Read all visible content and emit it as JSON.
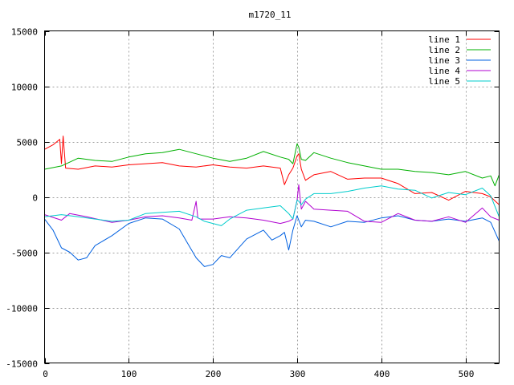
{
  "chart_data": {
    "type": "line",
    "title": "m1720_11",
    "xlabel": "",
    "ylabel": "",
    "xlim": [
      0,
      540
    ],
    "ylim": [
      -15000,
      15000
    ],
    "xticks": [
      0,
      100,
      200,
      300,
      400,
      500
    ],
    "yticks": [
      -15000,
      -10000,
      -5000,
      0,
      5000,
      10000,
      15000
    ],
    "grid": true,
    "legend_position": "top-right",
    "series": [
      {
        "name": "line 1",
        "color": "#ff0000",
        "x": [
          0,
          10,
          18,
          20,
          22,
          25,
          40,
          60,
          80,
          100,
          120,
          140,
          160,
          180,
          200,
          220,
          240,
          260,
          280,
          285,
          290,
          295,
          300,
          302,
          305,
          310,
          320,
          340,
          360,
          380,
          400,
          420,
          440,
          460,
          480,
          500,
          520,
          530,
          540
        ],
        "y": [
          4300,
          4700,
          5200,
          3000,
          5500,
          2600,
          2500,
          2800,
          2700,
          2900,
          3000,
          3100,
          2800,
          2700,
          2900,
          2700,
          2600,
          2800,
          2600,
          1100,
          2000,
          2600,
          3700,
          3900,
          2500,
          1500,
          2000,
          2300,
          1600,
          1700,
          1700,
          1200,
          300,
          400,
          -300,
          500,
          300,
          0,
          -700
        ]
      },
      {
        "name": "line 2",
        "color": "#00b000",
        "x": [
          0,
          20,
          40,
          60,
          80,
          100,
          120,
          140,
          160,
          180,
          200,
          220,
          240,
          260,
          280,
          290,
          295,
          300,
          302,
          305,
          310,
          320,
          340,
          360,
          380,
          400,
          420,
          440,
          460,
          480,
          500,
          520,
          530,
          535,
          540
        ],
        "y": [
          2500,
          2800,
          3500,
          3300,
          3200,
          3600,
          3900,
          4000,
          4300,
          3900,
          3500,
          3200,
          3500,
          4100,
          3600,
          3400,
          3000,
          4800,
          4500,
          3400,
          3300,
          4000,
          3500,
          3100,
          2800,
          2500,
          2500,
          2300,
          2200,
          2000,
          2300,
          1700,
          1900,
          1000,
          2000
        ]
      },
      {
        "name": "line 3",
        "color": "#0060e0",
        "x": [
          0,
          10,
          20,
          30,
          40,
          50,
          60,
          80,
          100,
          120,
          140,
          160,
          170,
          180,
          190,
          200,
          210,
          220,
          240,
          260,
          270,
          280,
          285,
          290,
          295,
          300,
          305,
          310,
          320,
          340,
          360,
          380,
          400,
          420,
          440,
          460,
          480,
          500,
          520,
          530,
          540
        ],
        "y": [
          -2000,
          -3000,
          -4600,
          -5000,
          -5700,
          -5500,
          -4400,
          -3500,
          -2400,
          -1900,
          -2000,
          -2900,
          -4200,
          -5500,
          -6300,
          -6100,
          -5300,
          -5500,
          -3800,
          -3000,
          -3900,
          -3500,
          -3200,
          -4800,
          -3000,
          -1700,
          -2700,
          -2100,
          -2200,
          -2700,
          -2200,
          -2300,
          -1900,
          -1700,
          -2100,
          -2200,
          -2000,
          -2200,
          -1900,
          -2300,
          -4000
        ]
      },
      {
        "name": "line 4",
        "color": "#b000d0",
        "x": [
          0,
          20,
          30,
          50,
          80,
          100,
          120,
          140,
          160,
          175,
          180,
          182,
          185,
          200,
          220,
          240,
          260,
          280,
          290,
          295,
          300,
          302,
          305,
          310,
          320,
          340,
          360,
          380,
          400,
          420,
          440,
          460,
          480,
          500,
          520,
          530,
          540
        ],
        "y": [
          -1600,
          -2100,
          -1500,
          -1800,
          -2300,
          -2100,
          -1800,
          -1700,
          -1900,
          -2100,
          -400,
          -1900,
          -2000,
          -2000,
          -1800,
          -1900,
          -2100,
          -2400,
          -2200,
          -2000,
          -300,
          1100,
          -1100,
          -400,
          -1100,
          -1200,
          -1300,
          -2200,
          -2300,
          -1500,
          -2100,
          -2200,
          -1800,
          -2300,
          -1000,
          -1800,
          -2100
        ]
      },
      {
        "name": "line 5",
        "color": "#00cccc",
        "x": [
          0,
          20,
          40,
          60,
          80,
          100,
          120,
          140,
          160,
          180,
          190,
          200,
          210,
          220,
          240,
          260,
          280,
          290,
          295,
          300,
          302,
          305,
          310,
          320,
          340,
          360,
          380,
          400,
          420,
          440,
          460,
          480,
          500,
          520,
          530,
          540
        ],
        "y": [
          -1800,
          -1600,
          -1800,
          -2000,
          -2200,
          -2100,
          -1500,
          -1400,
          -1300,
          -1800,
          -2200,
          -2400,
          -2600,
          -2000,
          -1200,
          -1000,
          -800,
          -1500,
          -2000,
          -300,
          -400,
          -700,
          -200,
          300,
          300,
          500,
          800,
          1000,
          700,
          600,
          -100,
          400,
          200,
          800,
          100,
          -1800
        ]
      }
    ]
  }
}
